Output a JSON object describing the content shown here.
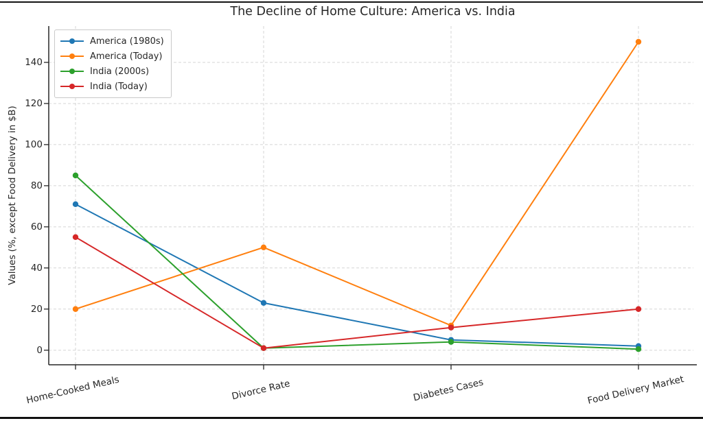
{
  "chart_data": {
    "type": "line",
    "title": "The Decline of Home Culture: America vs. India",
    "xlabel": "",
    "ylabel": "Values (%, except Food Delivery in $B)",
    "categories": [
      "Home-Cooked Meals",
      "Divorce Rate",
      "Diabetes Cases",
      "Food Delivery Market"
    ],
    "series": [
      {
        "name": "America (1980s)",
        "color": "#1f77b4",
        "values": [
          71,
          23,
          5,
          2
        ]
      },
      {
        "name": "America (Today)",
        "color": "#ff7f0e",
        "values": [
          20,
          50,
          12,
          150
        ]
      },
      {
        "name": "India (2000s)",
        "color": "#2ca02c",
        "values": [
          85,
          1,
          4,
          0.5
        ]
      },
      {
        "name": "India (Today)",
        "color": "#d62728",
        "values": [
          55,
          1,
          11,
          20
        ]
      }
    ],
    "yticks": [
      0,
      20,
      40,
      60,
      80,
      100,
      120,
      140
    ],
    "ylim": [
      -7.5,
      157.5
    ],
    "grid": true,
    "grid_style": "dashed",
    "legend_position": "upper-left",
    "marker": "circle",
    "colors": {
      "grid": "#c8c8c8",
      "axis": "#262626",
      "text": "#262626",
      "background": "#ffffff",
      "frame_border": "#111111",
      "legend_border": "#c9c9c9"
    }
  }
}
